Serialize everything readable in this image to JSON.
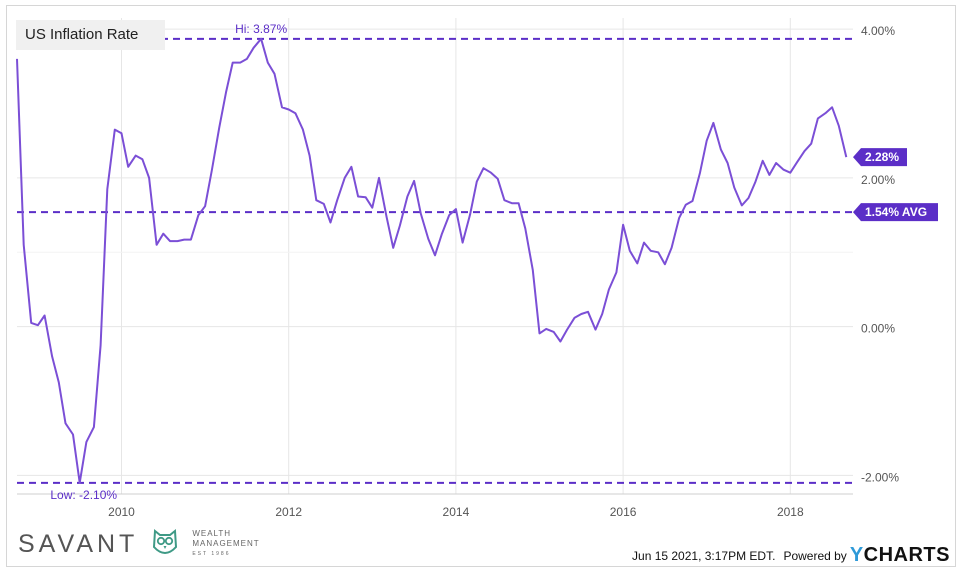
{
  "title": "US Inflation Rate",
  "footer": {
    "timestamp": "Jun 15 2021, 3:17PM EDT.",
    "powered_by": "Powered by",
    "brand_y": "Y",
    "brand_rest": "CHARTS"
  },
  "logo": {
    "name": "SAVANT",
    "line1": "WEALTH",
    "line2": "MANAGEMENT",
    "line3": "EST 1986"
  },
  "colors": {
    "series": "#7b4fd6",
    "reference": "#5b2ec7",
    "grid": "#e6e6e6",
    "axis_text": "#555555",
    "logo_green": "#3f9a86"
  },
  "chart_data": {
    "type": "line",
    "title": "US Inflation Rate",
    "xlabel": "",
    "ylabel": "",
    "x_ticks": [
      "2010",
      "2012",
      "2014",
      "2016",
      "2018"
    ],
    "y_ticks": [
      "4.00%",
      "2.00%",
      "0.00%",
      "-2.00%"
    ],
    "ylim": [
      -2.25,
      4.15
    ],
    "xlim": [
      2008.75,
      2018.75
    ],
    "grid": true,
    "series": [
      {
        "values": [
          [
            2008.75,
            3.6
          ],
          [
            2008.83,
            1.1
          ],
          [
            2008.92,
            0.05
          ],
          [
            2009.0,
            0.02
          ],
          [
            2009.08,
            0.15
          ],
          [
            2009.17,
            -0.4
          ],
          [
            2009.25,
            -0.75
          ],
          [
            2009.33,
            -1.3
          ],
          [
            2009.42,
            -1.45
          ],
          [
            2009.5,
            -2.1
          ],
          [
            2009.58,
            -1.55
          ],
          [
            2009.67,
            -1.35
          ],
          [
            2009.75,
            -0.25
          ],
          [
            2009.83,
            1.85
          ],
          [
            2009.92,
            2.65
          ],
          [
            2010.0,
            2.6
          ],
          [
            2010.08,
            2.15
          ],
          [
            2010.17,
            2.3
          ],
          [
            2010.25,
            2.25
          ],
          [
            2010.33,
            2.0
          ],
          [
            2010.42,
            1.1
          ],
          [
            2010.5,
            1.25
          ],
          [
            2010.58,
            1.15
          ],
          [
            2010.67,
            1.15
          ],
          [
            2010.75,
            1.17
          ],
          [
            2010.83,
            1.17
          ],
          [
            2010.92,
            1.5
          ],
          [
            2011.0,
            1.62
          ],
          [
            2011.08,
            2.1
          ],
          [
            2011.17,
            2.68
          ],
          [
            2011.25,
            3.15
          ],
          [
            2011.33,
            3.55
          ],
          [
            2011.42,
            3.55
          ],
          [
            2011.5,
            3.6
          ],
          [
            2011.58,
            3.75
          ],
          [
            2011.67,
            3.87
          ],
          [
            2011.75,
            3.55
          ],
          [
            2011.83,
            3.4
          ],
          [
            2011.92,
            2.95
          ],
          [
            2012.0,
            2.92
          ],
          [
            2012.08,
            2.87
          ],
          [
            2012.17,
            2.65
          ],
          [
            2012.25,
            2.3
          ],
          [
            2012.33,
            1.7
          ],
          [
            2012.42,
            1.65
          ],
          [
            2012.5,
            1.4
          ],
          [
            2012.58,
            1.7
          ],
          [
            2012.67,
            2.0
          ],
          [
            2012.75,
            2.15
          ],
          [
            2012.83,
            1.75
          ],
          [
            2012.92,
            1.74
          ],
          [
            2013.0,
            1.6
          ],
          [
            2013.08,
            2.0
          ],
          [
            2013.17,
            1.48
          ],
          [
            2013.25,
            1.06
          ],
          [
            2013.33,
            1.36
          ],
          [
            2013.42,
            1.75
          ],
          [
            2013.5,
            1.96
          ],
          [
            2013.58,
            1.52
          ],
          [
            2013.67,
            1.18
          ],
          [
            2013.75,
            0.96
          ],
          [
            2013.83,
            1.24
          ],
          [
            2013.92,
            1.5
          ],
          [
            2014.0,
            1.58
          ],
          [
            2014.08,
            1.13
          ],
          [
            2014.17,
            1.51
          ],
          [
            2014.25,
            1.95
          ],
          [
            2014.33,
            2.13
          ],
          [
            2014.42,
            2.07
          ],
          [
            2014.5,
            1.99
          ],
          [
            2014.58,
            1.7
          ],
          [
            2014.67,
            1.66
          ],
          [
            2014.75,
            1.66
          ],
          [
            2014.83,
            1.32
          ],
          [
            2014.92,
            0.76
          ],
          [
            2015.0,
            -0.09
          ],
          [
            2015.08,
            -0.03
          ],
          [
            2015.17,
            -0.07
          ],
          [
            2015.25,
            -0.2
          ],
          [
            2015.33,
            -0.04
          ],
          [
            2015.42,
            0.12
          ],
          [
            2015.5,
            0.17
          ],
          [
            2015.58,
            0.2
          ],
          [
            2015.67,
            -0.04
          ],
          [
            2015.75,
            0.17
          ],
          [
            2015.83,
            0.5
          ],
          [
            2015.92,
            0.73
          ],
          [
            2016.0,
            1.37
          ],
          [
            2016.08,
            1.02
          ],
          [
            2016.17,
            0.85
          ],
          [
            2016.25,
            1.13
          ],
          [
            2016.33,
            1.02
          ],
          [
            2016.42,
            1.0
          ],
          [
            2016.5,
            0.84
          ],
          [
            2016.58,
            1.06
          ],
          [
            2016.67,
            1.46
          ],
          [
            2016.75,
            1.64
          ],
          [
            2016.83,
            1.69
          ],
          [
            2016.92,
            2.07
          ],
          [
            2017.0,
            2.5
          ],
          [
            2017.08,
            2.74
          ],
          [
            2017.17,
            2.38
          ],
          [
            2017.25,
            2.2
          ],
          [
            2017.33,
            1.87
          ],
          [
            2017.42,
            1.63
          ],
          [
            2017.5,
            1.73
          ],
          [
            2017.58,
            1.94
          ],
          [
            2017.67,
            2.23
          ],
          [
            2017.75,
            2.04
          ],
          [
            2017.83,
            2.2
          ],
          [
            2017.92,
            2.11
          ],
          [
            2018.0,
            2.07
          ],
          [
            2018.08,
            2.21
          ],
          [
            2018.17,
            2.36
          ],
          [
            2018.25,
            2.46
          ],
          [
            2018.33,
            2.8
          ],
          [
            2018.42,
            2.87
          ],
          [
            2018.5,
            2.95
          ],
          [
            2018.58,
            2.7
          ],
          [
            2018.67,
            2.28
          ]
        ]
      }
    ],
    "reference_lines": [
      {
        "value": 3.87,
        "label": "Hi: 3.87%",
        "label_x": 2011.67
      },
      {
        "value": 1.54,
        "label": "1.54% AVG"
      },
      {
        "value": -2.1,
        "label": "Low: -2.10%",
        "label_x": 2009.5
      }
    ],
    "last_value_label": "2.28%",
    "last_value": 2.28
  }
}
